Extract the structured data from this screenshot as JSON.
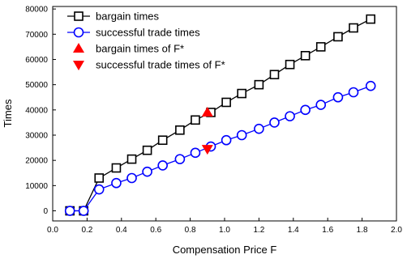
{
  "chart_data": {
    "type": "line",
    "xlabel": "Compensation Price F",
    "ylabel": "Times",
    "xlim": [
      0.0,
      2.0
    ],
    "ylim": [
      -4000,
      81000
    ],
    "xticks": [
      "0.0",
      "0.2",
      "0.4",
      "0.6",
      "0.8",
      "1.0",
      "1.2",
      "1.4",
      "1.6",
      "1.8",
      "2.0"
    ],
    "yticks": [
      "0",
      "10000",
      "20000",
      "30000",
      "40000",
      "50000",
      "60000",
      "70000",
      "80000"
    ],
    "grid": false,
    "legend_position": "top-left",
    "series": [
      {
        "name": "bargain times",
        "color": "#000000",
        "marker": "square",
        "x": [
          0.1,
          0.18,
          0.27,
          0.37,
          0.46,
          0.55,
          0.64,
          0.74,
          0.83,
          0.92,
          1.01,
          1.1,
          1.2,
          1.29,
          1.38,
          1.47,
          1.56,
          1.66,
          1.75,
          1.85
        ],
        "values": [
          0,
          0,
          13000,
          17000,
          20500,
          24000,
          28000,
          32000,
          36000,
          39000,
          43000,
          46500,
          50000,
          54000,
          58000,
          61500,
          65000,
          69000,
          72500,
          76000
        ]
      },
      {
        "name": "successful trade times",
        "color": "#0000ff",
        "marker": "circle",
        "x": [
          0.1,
          0.18,
          0.27,
          0.37,
          0.46,
          0.55,
          0.64,
          0.74,
          0.83,
          0.92,
          1.01,
          1.1,
          1.2,
          1.29,
          1.38,
          1.47,
          1.56,
          1.66,
          1.75,
          1.85
        ],
        "values": [
          0,
          0,
          8500,
          11000,
          13000,
          15500,
          18000,
          20500,
          23000,
          25500,
          28000,
          30000,
          32500,
          35000,
          37500,
          40000,
          42000,
          45000,
          47000,
          49500
        ]
      },
      {
        "name": "bargain times of F*",
        "color": "#ff0000",
        "marker": "triangle-up",
        "x": [
          0.9
        ],
        "values": [
          39000
        ]
      },
      {
        "name": "successful trade times of F*",
        "color": "#ff0000",
        "marker": "triangle-down",
        "x": [
          0.9
        ],
        "values": [
          24500
        ]
      }
    ]
  }
}
